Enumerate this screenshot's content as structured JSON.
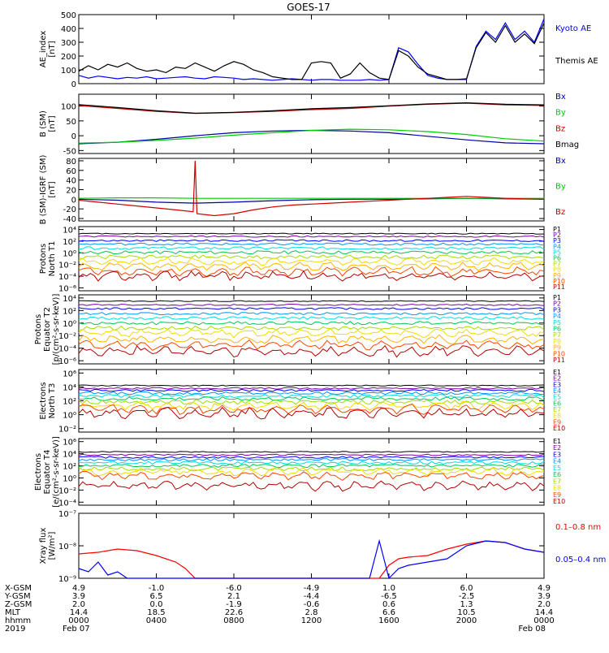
{
  "title": "GOES-17",
  "chart_data": [
    {
      "type": "line",
      "ylabel": [
        "AE_index",
        "[nT]"
      ],
      "yscale": "linear",
      "ylim": [
        0,
        500
      ],
      "yticks": [
        0,
        100,
        200,
        300,
        400,
        500
      ],
      "ytick_labels": [
        "0",
        "100",
        "200",
        "300",
        "400",
        "500"
      ],
      "series": [
        {
          "name": "Kyoto AE",
          "color": "#0000ff",
          "x": [
            0,
            0.5,
            1,
            1.5,
            2,
            2.5,
            3,
            3.5,
            4,
            4.5,
            5,
            5.5,
            6,
            6.5,
            7,
            7.5,
            8,
            8.5,
            9,
            9.5,
            10,
            10.5,
            11,
            11.5,
            12,
            12.5,
            13,
            13.5,
            14,
            14.5,
            15,
            15.5,
            16,
            16.5,
            17,
            17.5,
            18,
            18.5,
            19,
            19.5,
            20,
            20.5,
            21,
            21.5,
            22,
            22.5,
            23,
            23.5,
            24
          ],
          "y": [
            60,
            40,
            55,
            45,
            35,
            45,
            40,
            50,
            35,
            40,
            45,
            50,
            40,
            35,
            50,
            45,
            40,
            30,
            35,
            30,
            25,
            30,
            35,
            30,
            25,
            30,
            30,
            25,
            25,
            25,
            30,
            25,
            30,
            260,
            230,
            140,
            60,
            40,
            30,
            30,
            30,
            270,
            380,
            320,
            440,
            320,
            380,
            300,
            470
          ]
        },
        {
          "name": "Themis AE",
          "color": "#000000",
          "x": [
            0,
            0.5,
            1,
            1.5,
            2,
            2.5,
            3,
            3.5,
            4,
            4.5,
            5,
            5.5,
            6,
            6.5,
            7,
            7.5,
            8,
            8.5,
            9,
            9.5,
            10,
            10.5,
            11,
            11.5,
            12,
            12.5,
            13,
            13.5,
            14,
            14.5,
            15,
            15.5,
            16,
            16.5,
            17,
            17.5,
            18,
            18.5,
            19,
            19.5,
            20,
            20.5,
            21,
            21.5,
            22,
            22.5,
            23,
            23.5,
            24
          ],
          "y": [
            90,
            130,
            100,
            140,
            120,
            150,
            110,
            90,
            100,
            80,
            120,
            110,
            150,
            120,
            90,
            130,
            160,
            140,
            100,
            80,
            50,
            40,
            30,
            30,
            150,
            160,
            150,
            40,
            70,
            150,
            80,
            40,
            30,
            240,
            200,
            120,
            70,
            50,
            30,
            30,
            35,
            260,
            370,
            300,
            420,
            300,
            360,
            290,
            440
          ]
        }
      ],
      "legend": "right"
    },
    {
      "type": "line",
      "ylabel": [
        "B (SM)",
        "[nT]"
      ],
      "yscale": "linear",
      "ylim": [
        -60,
        140
      ],
      "yticks": [
        -50,
        0,
        50,
        100
      ],
      "ytick_labels": [
        "-50",
        "0",
        "50",
        "100"
      ],
      "series": [
        {
          "name": "Bx",
          "color": "#0000aa",
          "x": [
            0,
            2,
            4,
            6,
            8,
            10,
            12,
            14,
            16,
            18,
            20,
            22,
            24
          ],
          "y": [
            -27,
            -22,
            -12,
            0,
            10,
            16,
            18,
            16,
            10,
            -2,
            -14,
            -24,
            -27
          ]
        },
        {
          "name": "By",
          "color": "#00cc00",
          "x": [
            0,
            2,
            4,
            6,
            8,
            10,
            12,
            14,
            16,
            18,
            20,
            22,
            24
          ],
          "y": [
            -25,
            -22,
            -16,
            -8,
            2,
            10,
            18,
            22,
            20,
            14,
            4,
            -10,
            -18
          ]
        },
        {
          "name": "Bz",
          "color": "#cc0000",
          "x": [
            0,
            2,
            4,
            6,
            8,
            10,
            12,
            14,
            16,
            18,
            20,
            22,
            24
          ],
          "y": [
            102,
            92,
            82,
            75,
            78,
            82,
            88,
            92,
            100,
            106,
            110,
            104,
            102
          ]
        },
        {
          "name": "Bmag",
          "color": "#000000",
          "x": [
            0,
            2,
            4,
            6,
            8,
            10,
            12,
            14,
            16,
            18,
            20,
            22,
            24
          ],
          "y": [
            105,
            95,
            84,
            76,
            79,
            84,
            91,
            95,
            101,
            107,
            111,
            106,
            104
          ]
        }
      ],
      "legend": "right"
    },
    {
      "type": "line",
      "ylabel": [
        "B (SM)-IGRF (SM)",
        "[nT]"
      ],
      "yscale": "linear",
      "ylim": [
        -45,
        85
      ],
      "yticks": [
        -40,
        -20,
        0,
        20,
        40,
        60,
        80
      ],
      "ytick_labels": [
        "-40",
        "-20",
        "0",
        "20",
        "40",
        "60",
        "80"
      ],
      "series": [
        {
          "name": "Bx",
          "color": "#0000aa",
          "x": [
            0,
            2,
            4,
            6,
            8,
            10,
            12,
            14,
            16,
            18,
            20,
            22,
            24
          ],
          "y": [
            0,
            -2,
            -6,
            -8,
            -6,
            -3,
            -1,
            0,
            0,
            1,
            2,
            1,
            0
          ]
        },
        {
          "name": "By",
          "color": "#00cc00",
          "x": [
            0,
            2,
            4,
            6,
            8,
            10,
            12,
            14,
            16,
            18,
            20,
            22,
            24
          ],
          "y": [
            2,
            3,
            3,
            2,
            2,
            2,
            2,
            2,
            2,
            2,
            2,
            2,
            2
          ]
        },
        {
          "name": "Bz",
          "color": "#cc0000",
          "x": [
            0,
            1,
            2,
            3,
            4,
            5,
            5.9,
            6,
            6.1,
            7,
            8,
            9,
            10,
            11,
            12,
            13,
            14,
            15,
            16,
            17,
            18,
            19,
            20,
            21,
            22,
            23,
            24
          ],
          "y": [
            -2,
            -6,
            -10,
            -14,
            -18,
            -22,
            -26,
            80,
            -30,
            -34,
            -30,
            -22,
            -16,
            -12,
            -10,
            -8,
            -6,
            -4,
            -2,
            0,
            2,
            4,
            6,
            4,
            2,
            1,
            0
          ]
        }
      ],
      "legend": "right"
    },
    {
      "type": "line",
      "ylabel": [
        "Protons",
        "North T1"
      ],
      "yscale": "log",
      "ylim": [
        -6.5,
        4.5
      ],
      "yticks": [
        -6,
        -4,
        -2,
        0,
        2,
        4
      ],
      "ytick_labels": [
        "10⁻⁶",
        "10⁻⁴",
        "10⁻²",
        "10⁰",
        "10²",
        "10⁴"
      ],
      "levels_log10": [
        3.3,
        2.8,
        2.1,
        1.5,
        0.8,
        0.1,
        -0.7,
        -1.5,
        -2.3,
        -3.2,
        -4.0
      ],
      "series": [
        {
          "name": "P1",
          "color": "#000000"
        },
        {
          "name": "P2",
          "color": "#7f00a0"
        },
        {
          "name": "P3",
          "color": "#0000ff"
        },
        {
          "name": "P4",
          "color": "#0096ff"
        },
        {
          "name": "P5",
          "color": "#00dcdc"
        },
        {
          "name": "P6",
          "color": "#00c850"
        },
        {
          "name": "P7",
          "color": "#a0dc00"
        },
        {
          "name": "P8",
          "color": "#f0dc00"
        },
        {
          "name": "P9",
          "color": "#ffb400"
        },
        {
          "name": "P10",
          "color": "#ff4600"
        },
        {
          "name": "P11",
          "color": "#b40000"
        }
      ],
      "legend": "right"
    },
    {
      "type": "line",
      "ylabel": [
        "Protons",
        "Equator T2",
        "[p/(cm²-s-sr-keV)]"
      ],
      "yscale": "log",
      "ylim": [
        -6.5,
        4.5
      ],
      "yticks": [
        -6,
        -4,
        -2,
        0,
        2,
        4
      ],
      "ytick_labels": [
        "10⁻⁶",
        "10⁻⁴",
        "10⁻²",
        "10⁰",
        "10²",
        "10⁴"
      ],
      "levels_log10": [
        3.5,
        2.9,
        2.3,
        1.5,
        0.8,
        0.0,
        -0.8,
        -1.6,
        -2.6,
        -3.5,
        -4.5
      ],
      "series": [
        {
          "name": "P1",
          "color": "#000000"
        },
        {
          "name": "P2",
          "color": "#7f00a0"
        },
        {
          "name": "P3",
          "color": "#0000ff"
        },
        {
          "name": "P4",
          "color": "#0096ff"
        },
        {
          "name": "P5",
          "color": "#00dcdc"
        },
        {
          "name": "P6",
          "color": "#00c850"
        },
        {
          "name": "P7",
          "color": "#a0dc00"
        },
        {
          "name": "P8",
          "color": "#f0dc00"
        },
        {
          "name": "P9",
          "color": "#ffb400"
        },
        {
          "name": "P10",
          "color": "#ff4600"
        },
        {
          "name": "P11",
          "color": "#b40000"
        }
      ],
      "legend": "right"
    },
    {
      "type": "line",
      "ylabel": [
        "Electrons",
        "North T3"
      ],
      "yscale": "log",
      "ylim": [
        -2.5,
        6.5
      ],
      "yticks": [
        -2,
        0,
        2,
        4,
        6
      ],
      "ytick_labels": [
        "10⁻²",
        "10⁰",
        "10²",
        "10⁴",
        "10⁶"
      ],
      "levels_log10": [
        4.2,
        3.8,
        3.5,
        3.1,
        2.7,
        2.3,
        1.8,
        1.3,
        0.8,
        0.2,
        -0.8
      ],
      "series": [
        {
          "name": "E1",
          "color": "#000000"
        },
        {
          "name": "E2",
          "color": "#7f00a0"
        },
        {
          "name": "E3",
          "color": "#0000ff"
        },
        {
          "name": "E4",
          "color": "#0096ff"
        },
        {
          "name": "E5",
          "color": "#00dcdc"
        },
        {
          "name": "E6",
          "color": "#00c850"
        },
        {
          "name": "E7",
          "color": "#a0dc00"
        },
        {
          "name": "E8",
          "color": "#f0dc00"
        },
        {
          "name": "E9",
          "color": "#ff4600"
        },
        {
          "name": "E10",
          "color": "#b40000"
        }
      ],
      "levels_used": 10,
      "legend": "right"
    },
    {
      "type": "line",
      "ylabel": [
        "Electrons",
        "Equator T4",
        "[e/(cm²-s-sr-keV)]"
      ],
      "yscale": "log",
      "ylim": [
        -4.5,
        6.5
      ],
      "yticks": [
        -4,
        -2,
        0,
        2,
        4,
        6
      ],
      "ytick_labels": [
        "10⁻⁴",
        "10⁻²",
        "10⁰",
        "10²",
        "10⁴",
        "10⁶"
      ],
      "levels_log10": [
        4.3,
        3.8,
        3.4,
        3.0,
        2.5,
        2.0,
        1.5,
        1.0,
        0.4,
        -1.3
      ],
      "series": [
        {
          "name": "E1",
          "color": "#000000"
        },
        {
          "name": "E2",
          "color": "#7f00a0"
        },
        {
          "name": "E3",
          "color": "#0000ff"
        },
        {
          "name": "E4",
          "color": "#0096ff"
        },
        {
          "name": "E5",
          "color": "#00dcdc"
        },
        {
          "name": "E6",
          "color": "#00c850"
        },
        {
          "name": "E7",
          "color": "#a0dc00"
        },
        {
          "name": "E8",
          "color": "#f0dc00"
        },
        {
          "name": "E9",
          "color": "#ff4600"
        },
        {
          "name": "E10",
          "color": "#b40000"
        }
      ],
      "legend": "right"
    },
    {
      "type": "line",
      "ylabel": [
        "Xray flux",
        "[W/m²]"
      ],
      "yscale": "log",
      "ylim": [
        -9,
        -7
      ],
      "yticks": [
        -9,
        -8,
        -7
      ],
      "ytick_labels": [
        "10⁻⁹",
        "10⁻⁸",
        "10⁻⁷"
      ],
      "series": [
        {
          "name": "0.1–0.8 nm",
          "color": "#ff0000",
          "x": [
            0,
            1,
            2,
            3,
            4,
            5,
            5.5,
            6,
            7,
            8,
            9,
            10,
            11,
            12,
            13,
            14,
            14.5,
            15,
            15.5,
            16,
            16.5,
            17,
            18,
            19,
            20,
            21,
            22,
            23,
            24
          ],
          "y": [
            -8.25,
            -8.2,
            -8.1,
            -8.15,
            -8.3,
            -8.5,
            -8.7,
            -9.0,
            -9.0,
            -9.0,
            -9.0,
            -9.0,
            -9.0,
            -9.0,
            -9.0,
            -9.0,
            -9.0,
            -9.0,
            -9.0,
            -8.6,
            -8.4,
            -8.35,
            -8.3,
            -8.1,
            -7.95,
            -7.85,
            -7.9,
            -8.1,
            -8.2
          ]
        },
        {
          "name": "0.05–0.4 nm",
          "color": "#0000ff",
          "x": [
            0,
            0.5,
            1,
            1.5,
            2,
            2.5,
            3,
            4,
            5,
            6,
            7,
            8,
            9,
            10,
            11,
            12,
            13,
            14,
            15,
            15.5,
            16,
            16.5,
            17,
            18,
            19,
            20,
            21,
            22,
            23,
            24
          ],
          "y": [
            -8.7,
            -8.8,
            -8.5,
            -8.9,
            -8.8,
            -9.0,
            -9.0,
            -9.0,
            -9.0,
            -9.0,
            -9.0,
            -9.0,
            -9.0,
            -9.0,
            -9.0,
            -9.0,
            -9.0,
            -9.0,
            -9.0,
            -7.85,
            -9.0,
            -8.7,
            -8.6,
            -8.5,
            -8.4,
            -8.0,
            -7.85,
            -7.9,
            -8.1,
            -8.2
          ]
        }
      ],
      "legend": "right"
    }
  ],
  "x_axis": {
    "range": [
      0,
      24
    ],
    "ticks": [
      0,
      4,
      8,
      12,
      16,
      20,
      24
    ],
    "row_labels": [
      "X-GSM",
      "Y-GSM",
      "Z-GSM",
      "MLT",
      "hhmm",
      "2019"
    ],
    "rows": [
      [
        "4.9",
        "-1.0",
        "-6.0",
        "-4.9",
        "1.0",
        "6.0",
        "4.9"
      ],
      [
        "3.9",
        "6.5",
        "2.1",
        "-4.4",
        "-6.5",
        "-2.5",
        "3.9"
      ],
      [
        "2.0",
        "0.0",
        "-1.9",
        "-0.6",
        "0.6",
        "1.3",
        "2.0"
      ],
      [
        "14.4",
        "18.5",
        "22.6",
        "2.8",
        "6.6",
        "10.5",
        "14.4"
      ],
      [
        "0000",
        "0400",
        "0800",
        "1200",
        "1600",
        "2000",
        "0000"
      ],
      [
        "Feb 07",
        "",
        "",
        "",
        "",
        "",
        "Feb 08"
      ]
    ]
  },
  "colors": {
    "axis": "#000000",
    "background": "#ffffff"
  }
}
